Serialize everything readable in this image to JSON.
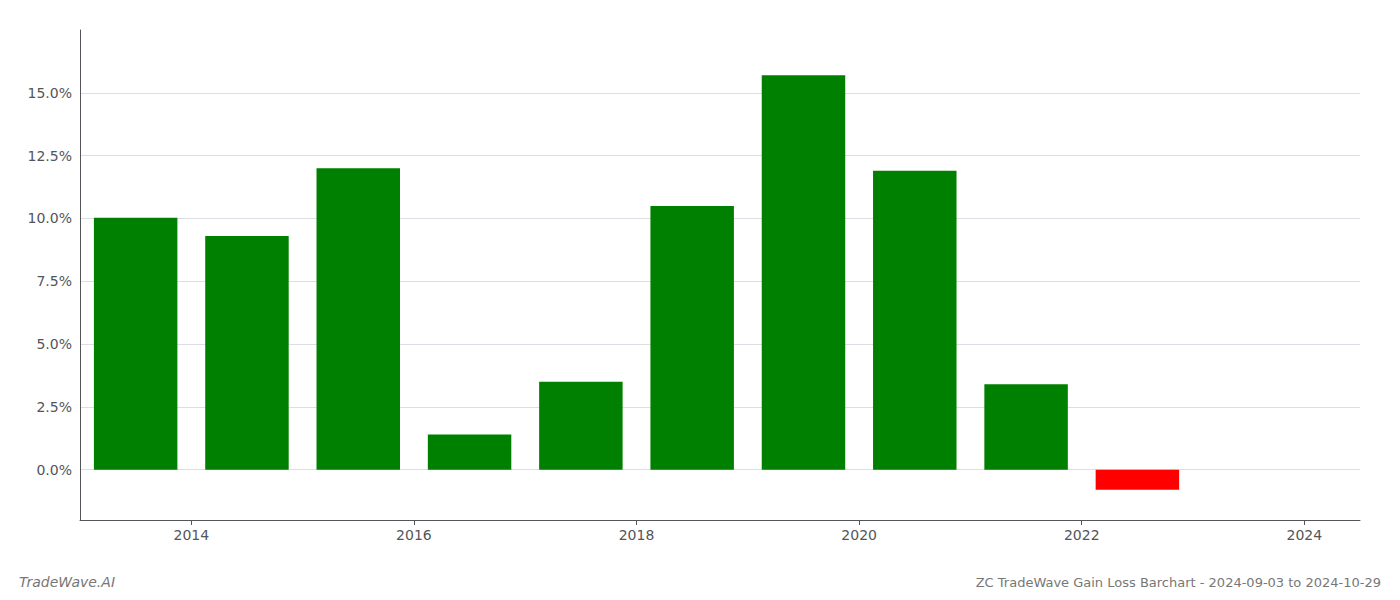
{
  "chart_data": {
    "type": "bar",
    "title": "ZC TradeWave Gain Loss Barchart - 2024-09-03 to 2024-10-29",
    "annotations": [
      "TradeWave.AI"
    ],
    "x": [
      2013.5,
      2014.5,
      2015.5,
      2016.5,
      2017.5,
      2018.5,
      2019.5,
      2020.5,
      2021.5,
      2022.5
    ],
    "values": [
      0.1003,
      0.093,
      0.12,
      0.014,
      0.035,
      0.105,
      0.157,
      0.119,
      0.034,
      -0.008
    ],
    "colors": [
      "#008000",
      "#008000",
      "#008000",
      "#008000",
      "#008000",
      "#008000",
      "#008000",
      "#008000",
      "#008000",
      "#ff0000"
    ],
    "xlim": [
      2013.0,
      2024.5
    ],
    "xticks": [
      2014,
      2016,
      2018,
      2020,
      2022,
      2024
    ],
    "ylim": [
      -0.02,
      0.175
    ],
    "yticks": [
      {
        "value": 0.0,
        "label": "0.0%"
      },
      {
        "value": 0.025,
        "label": "2.5%"
      },
      {
        "value": 0.05,
        "label": "5.0%"
      },
      {
        "value": 0.075,
        "label": "7.5%"
      },
      {
        "value": 0.1,
        "label": "10.0%"
      },
      {
        "value": 0.125,
        "label": "12.5%"
      },
      {
        "value": 0.15,
        "label": "15.0%"
      }
    ],
    "grid": true
  }
}
